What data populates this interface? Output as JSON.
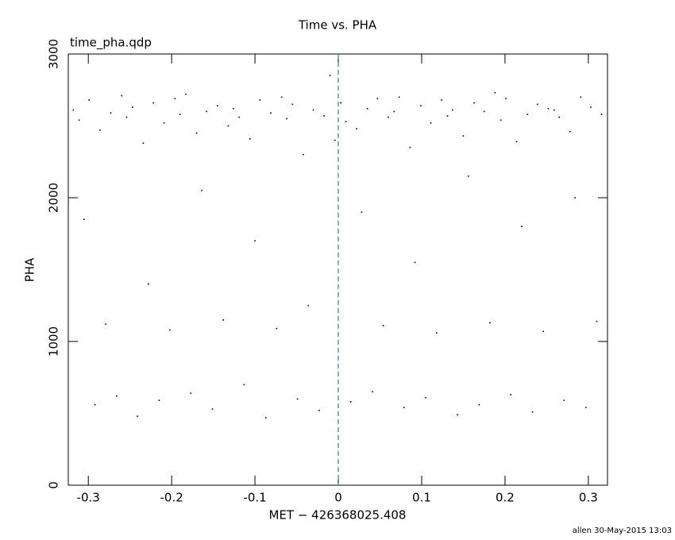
{
  "chart_data": {
    "type": "scatter",
    "title": "Time vs. PHA",
    "subtitle": "time_pha.qdp",
    "x_label": "MET − 426368025.408",
    "y_label": "PHA",
    "footer": "allen 30-May-2015 13:03",
    "color": "#000000",
    "vline": {
      "x": 0,
      "color": "#1a8c9c"
    },
    "xlim": [
      -0.324,
      0.323
    ],
    "ylim": [
      0,
      3000
    ],
    "xticks": [
      -0.3,
      -0.2,
      -0.1,
      0,
      0.1,
      0.2,
      0.3
    ],
    "yticks": [
      0,
      1000,
      2000,
      3000
    ],
    "x": [
      -0.318,
      -0.311,
      -0.305,
      -0.299,
      -0.292,
      -0.286,
      -0.279,
      -0.273,
      -0.266,
      -0.26,
      -0.254,
      -0.247,
      -0.241,
      -0.234,
      -0.228,
      -0.222,
      -0.215,
      -0.209,
      -0.202,
      -0.196,
      -0.19,
      -0.183,
      -0.177,
      -0.17,
      -0.164,
      -0.158,
      -0.151,
      -0.145,
      -0.138,
      -0.132,
      -0.126,
      -0.119,
      -0.113,
      -0.106,
      -0.1,
      -0.094,
      -0.087,
      -0.081,
      -0.074,
      -0.068,
      -0.062,
      -0.055,
      -0.049,
      -0.042,
      -0.036,
      -0.03,
      -0.023,
      -0.017,
      -0.01,
      -0.004,
      0.003,
      0.009,
      0.015,
      0.022,
      0.028,
      0.035,
      0.041,
      0.047,
      0.054,
      0.06,
      0.067,
      0.073,
      0.079,
      0.086,
      0.092,
      0.099,
      0.105,
      0.111,
      0.118,
      0.124,
      0.131,
      0.137,
      0.143,
      0.15,
      0.156,
      0.163,
      0.169,
      0.175,
      0.182,
      0.188,
      0.195,
      0.201,
      0.207,
      0.214,
      0.22,
      0.227,
      0.233,
      0.239,
      0.246,
      0.252,
      0.259,
      0.265,
      0.271,
      0.278,
      0.284,
      0.291,
      0.297,
      0.303,
      0.31,
      0.316
    ],
    "values": [
      2610,
      2540,
      1850,
      2680,
      560,
      2470,
      1120,
      2590,
      620,
      2710,
      2560,
      2630,
      480,
      2380,
      1400,
      2660,
      590,
      2520,
      1080,
      2690,
      2580,
      2720,
      640,
      2450,
      2050,
      2600,
      530,
      2640,
      1150,
      2500,
      2620,
      2560,
      700,
      2410,
      1700,
      2680,
      470,
      2590,
      1090,
      2700,
      2550,
      2650,
      600,
      2300,
      1250,
      2610,
      520,
      2570,
      2850,
      2400,
      2660,
      2530,
      580,
      2480,
      1900,
      2620,
      650,
      2690,
      1110,
      2560,
      2600,
      2700,
      540,
      2350,
      1550,
      2640,
      610,
      2520,
      1060,
      2680,
      2570,
      2610,
      490,
      2430,
      2150,
      2660,
      560,
      2600,
      1130,
      2730,
      2540,
      2690,
      630,
      2390,
      1800,
      2580,
      510,
      2650,
      1070,
      2620,
      2610,
      2560,
      590,
      2460,
      2000,
      2700,
      540,
      2630,
      1140,
      2580
    ]
  }
}
